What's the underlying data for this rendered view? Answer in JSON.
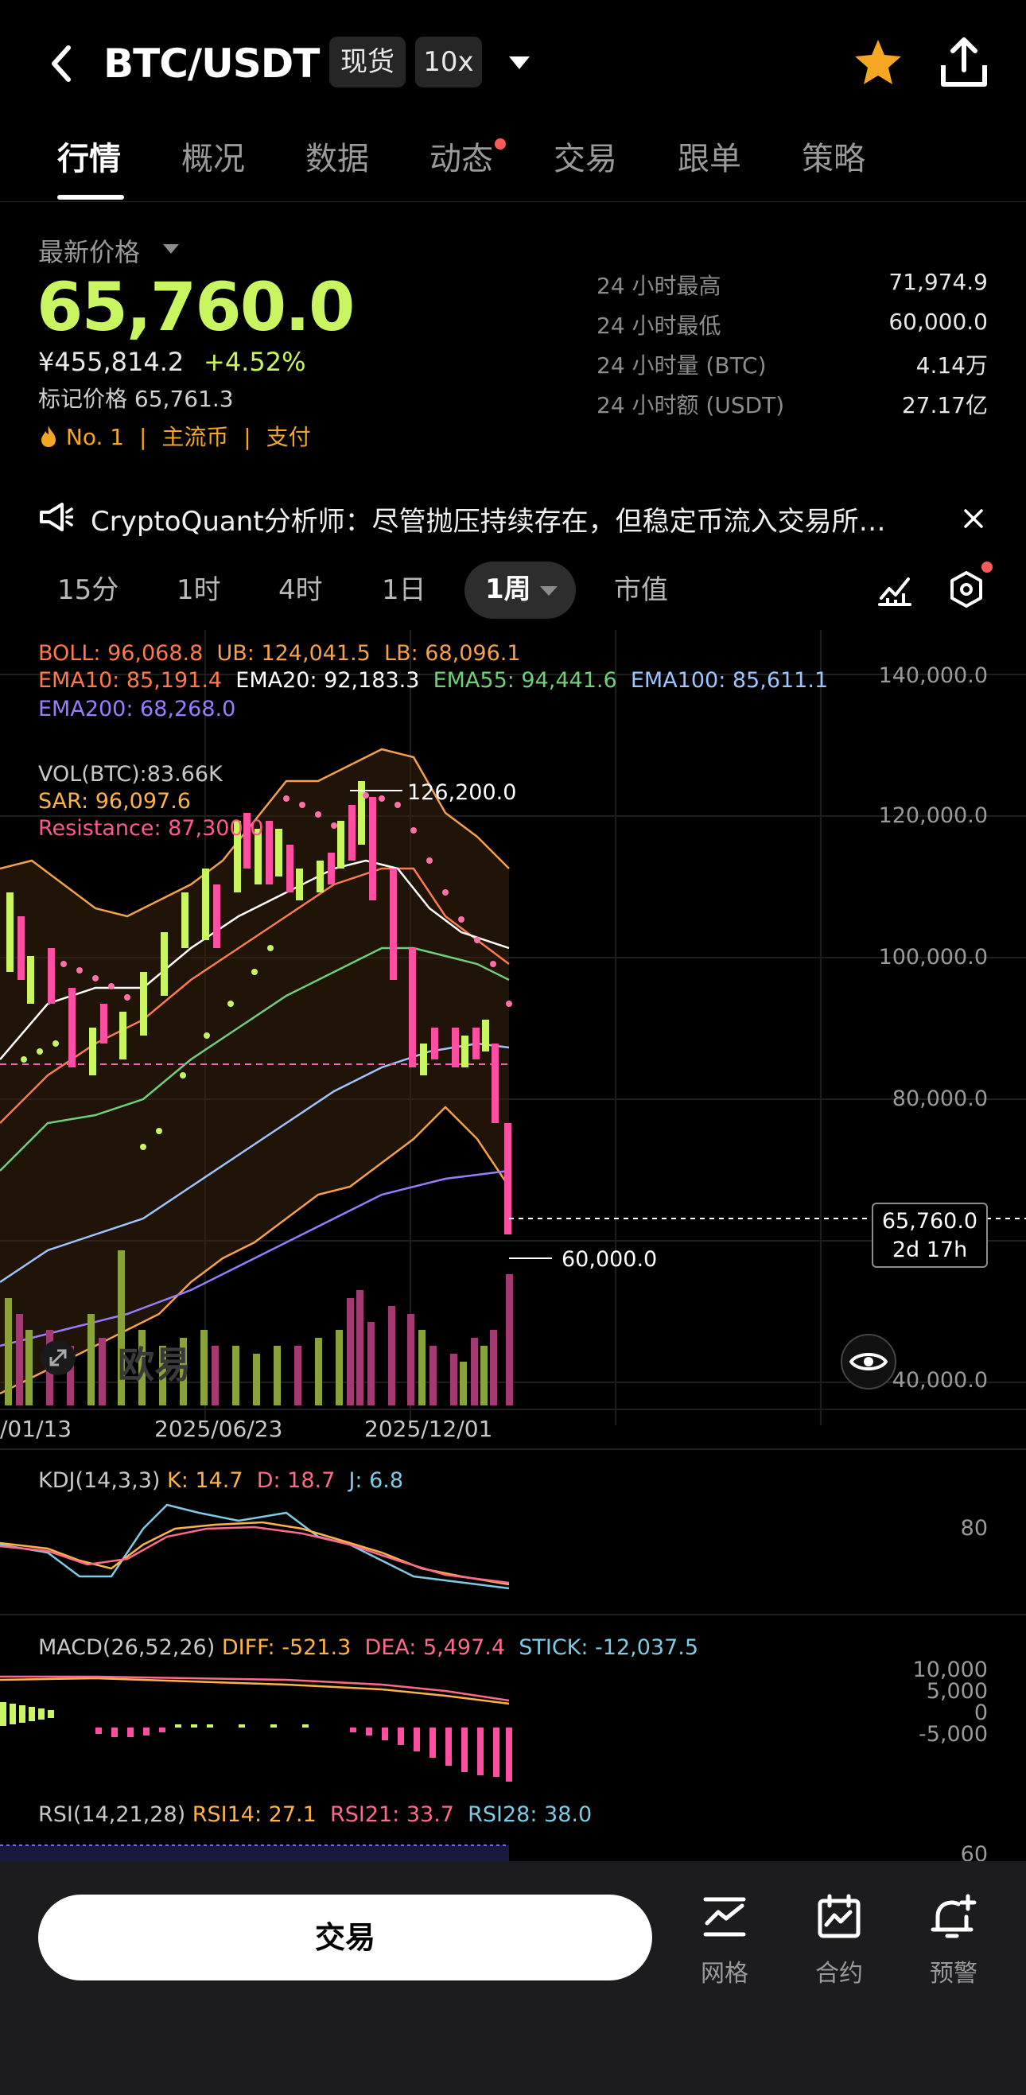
{
  "header": {
    "pair": "BTC/USDT",
    "market_type": "现货",
    "leverage": "10x",
    "icons": [
      "back-icon",
      "chevron-down-icon",
      "star-icon",
      "share-icon"
    ],
    "accent": "#f5a623"
  },
  "tabs": [
    "行情",
    "概况",
    "数据",
    "动态",
    "交易",
    "跟单",
    "策略"
  ],
  "price": {
    "label": "最新价格",
    "last": "65,760.0",
    "cny": "¥455,814.2",
    "change": "+4.52%",
    "mark_label": "标记价格",
    "mark": "65,761.3",
    "green": "#c8f560"
  },
  "tags": {
    "rank": "No. 1",
    "sep": "|",
    "t1": "主流币",
    "t2": "支付"
  },
  "stats": [
    {
      "label": "24 小时最高",
      "value": "71,974.9"
    },
    {
      "label": "24 小时最低",
      "value": "60,000.0"
    },
    {
      "label": "24 小时量 (BTC)",
      "value": "4.14万"
    },
    {
      "label": "24 小时额 (USDT)",
      "value": "27.17亿"
    }
  ],
  "news": "CryptoQuant分析师：尽管抛压持续存在，但稳定币流入交易所…",
  "intervals": {
    "items": [
      "15分",
      "1时",
      "4时",
      "1日",
      "1周",
      "市值"
    ],
    "selected": "1周"
  },
  "indicators": {
    "boll": "BOLL: 96,068.8",
    "ub": "UB: 124,041.5",
    "lb": "LB: 68,096.1",
    "ema10": "EMA10: 85,191.4",
    "ema20": "EMA20: 92,183.3",
    "ema55": "EMA55: 94,441.6",
    "ema100": "EMA100: 85,611.1",
    "ema200": "EMA200: 68,268.0",
    "vol": "VOL(BTC):83.66K",
    "sar": "SAR: 96,097.6",
    "resistance": "Resistance: 87,300.0"
  },
  "chart_data": {
    "type": "candlestick",
    "y_ticks": [
      "140,000.0",
      "120,000.0",
      "100,000.0",
      "80,000.0",
      "40,000.0"
    ],
    "x_ticks": [
      "/01/13",
      "2025/06/23",
      "2025/12/01"
    ],
    "high_label": "126,200.0",
    "low_label": "60,000.0",
    "current_price": "65,760.0",
    "countdown": "2d 17h",
    "watermark": "欧易"
  },
  "kdj": {
    "name": "KDJ(14,3,3)",
    "k": "K: 14.7",
    "d": "D: 18.7",
    "j": "J: 6.8",
    "tick": "80"
  },
  "macd": {
    "name": "MACD(26,52,26)",
    "diff": "DIFF: -521.3",
    "dea": "DEA: 5,497.4",
    "stick": "STICK: -12,037.5",
    "ticks": [
      "10,000",
      "5,000",
      "0",
      "-5,000"
    ]
  },
  "rsi": {
    "name": "RSI(14,21,28)",
    "r14": "RSI14: 27.1",
    "r21": "RSI21: 33.7",
    "r28": "RSI28: 38.0",
    "tick": "60"
  },
  "bottom": {
    "trade": "交易",
    "grid": "网格",
    "contract": "合约",
    "alert": "预警"
  }
}
